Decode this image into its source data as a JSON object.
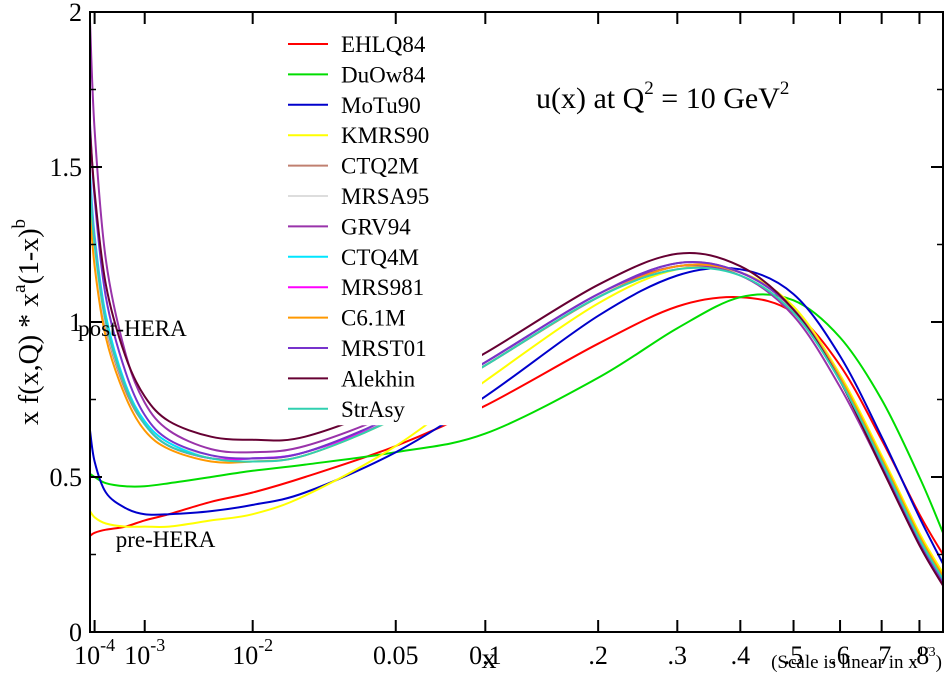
{
  "chart_data": {
    "type": "line",
    "title": "u(x) at Q^2 = 10 GeV^2",
    "title_parts": {
      "main": "u(x) at Q",
      "exp1": "2",
      "mid": " = 10 GeV",
      "exp2": "2"
    },
    "xlabel": "x",
    "ylabel": {
      "prefix": "x f(x,Q)",
      "sup_a": "a",
      "sup_b": "b",
      "star": "* x",
      "mid": "(1-x)"
    },
    "scale_note": "(Scale is linear in x",
    "scale_note_exp": "1/3",
    "scale_note_close": ")",
    "ylim": [
      0,
      2
    ],
    "x_axis_variable": "x^(1/3)",
    "x_range_cuberoot": [
      0.0415,
      0.9535
    ],
    "y_ticks": [
      {
        "value": 0,
        "label": "0"
      },
      {
        "value": 0.5,
        "label": "0.5"
      },
      {
        "value": 1,
        "label": "1"
      },
      {
        "value": 1.5,
        "label": "1.5"
      },
      {
        "value": 2,
        "label": "2"
      }
    ],
    "x_ticks": [
      {
        "value": 0.0001,
        "base": "10",
        "exp": "-4"
      },
      {
        "value": 0.001,
        "base": "10",
        "exp": "-3"
      },
      {
        "value": 0.01,
        "base": "10",
        "exp": "-2"
      },
      {
        "value": 0.05,
        "label": "0.05"
      },
      {
        "value": 0.1,
        "label": "0.1"
      },
      {
        "value": 0.2,
        "label": ".2"
      },
      {
        "value": 0.3,
        "label": ".3"
      },
      {
        "value": 0.4,
        "label": ".4"
      },
      {
        "value": 0.5,
        "label": ".5"
      },
      {
        "value": 0.6,
        "label": ".6"
      },
      {
        "value": 0.7,
        "label": ".7"
      },
      {
        "value": 0.8,
        "label": ".8"
      }
    ],
    "annotations": [
      {
        "text": "post-HERA",
        "x": 0.00025,
        "y": 0.98
      },
      {
        "text": "pre-HERA",
        "x": 0.0011,
        "y": 0.3
      }
    ],
    "legend_position": "top-left",
    "x_knots": [
      7.17e-05,
      0.0001,
      0.0002,
      0.0005,
      0.001,
      0.002,
      0.005,
      0.01,
      0.02,
      0.05,
      0.1,
      0.2,
      0.3,
      0.4,
      0.5,
      0.6,
      0.7,
      0.8,
      0.867
    ],
    "series": [
      {
        "name": "EHLQ84",
        "color": "#ff0000",
        "values": [
          0.31,
          0.32,
          0.33,
          0.34,
          0.36,
          0.38,
          0.42,
          0.45,
          0.5,
          0.6,
          0.73,
          0.93,
          1.05,
          1.08,
          1.03,
          0.86,
          0.62,
          0.38,
          0.25
        ]
      },
      {
        "name": "DuOw84",
        "color": "#00dd00",
        "values": [
          0.51,
          0.5,
          0.48,
          0.47,
          0.47,
          0.48,
          0.5,
          0.52,
          0.54,
          0.58,
          0.64,
          0.82,
          0.98,
          1.08,
          1.07,
          0.95,
          0.75,
          0.5,
          0.32
        ]
      },
      {
        "name": "MoTu90",
        "color": "#0000cc",
        "values": [
          0.65,
          0.55,
          0.45,
          0.4,
          0.38,
          0.38,
          0.39,
          0.41,
          0.45,
          0.58,
          0.76,
          1.02,
          1.15,
          1.17,
          1.09,
          0.89,
          0.63,
          0.37,
          0.22
        ]
      },
      {
        "name": "KMRS90",
        "color": "#ffff00",
        "values": [
          0.39,
          0.37,
          0.35,
          0.34,
          0.34,
          0.34,
          0.36,
          0.38,
          0.44,
          0.6,
          0.81,
          1.06,
          1.17,
          1.16,
          1.05,
          0.83,
          0.57,
          0.32,
          0.19
        ]
      },
      {
        "name": "CTQ2M",
        "color": "#c08070",
        "values": [
          1.38,
          1.21,
          0.98,
          0.78,
          0.67,
          0.6,
          0.56,
          0.56,
          0.58,
          0.7,
          0.87,
          1.09,
          1.19,
          1.16,
          1.04,
          0.82,
          0.55,
          0.3,
          0.17
        ]
      },
      {
        "name": "MRSA95",
        "color": "#dddddd",
        "values": [
          1.4,
          1.22,
          0.99,
          0.79,
          0.68,
          0.61,
          0.57,
          0.56,
          0.58,
          0.69,
          0.86,
          1.08,
          1.18,
          1.16,
          1.04,
          0.82,
          0.55,
          0.3,
          0.17
        ]
      },
      {
        "name": "GRV94",
        "color": "#9933aa",
        "values": [
          1.97,
          1.62,
          1.2,
          0.9,
          0.74,
          0.65,
          0.59,
          0.58,
          0.6,
          0.71,
          0.87,
          1.09,
          1.18,
          1.15,
          1.02,
          0.79,
          0.53,
          0.28,
          0.15
        ]
      },
      {
        "name": "CTQ4M",
        "color": "#00e5ff",
        "values": [
          1.48,
          1.28,
          1.02,
          0.8,
          0.68,
          0.61,
          0.56,
          0.56,
          0.58,
          0.69,
          0.86,
          1.08,
          1.18,
          1.16,
          1.04,
          0.82,
          0.55,
          0.3,
          0.17
        ]
      },
      {
        "name": "MRS981",
        "color": "#ff00ff",
        "values": [
          1.45,
          1.26,
          1.0,
          0.79,
          0.67,
          0.6,
          0.56,
          0.56,
          0.58,
          0.69,
          0.86,
          1.08,
          1.18,
          1.16,
          1.04,
          0.82,
          0.55,
          0.3,
          0.17
        ]
      },
      {
        "name": "C6.1M",
        "color": "#ff9900",
        "values": [
          1.36,
          1.18,
          0.95,
          0.76,
          0.65,
          0.59,
          0.55,
          0.55,
          0.57,
          0.69,
          0.86,
          1.08,
          1.18,
          1.16,
          1.04,
          0.82,
          0.56,
          0.31,
          0.18
        ]
      },
      {
        "name": "MRST01",
        "color": "#7733cc",
        "values": [
          1.64,
          1.4,
          1.08,
          0.84,
          0.7,
          0.62,
          0.57,
          0.56,
          0.58,
          0.7,
          0.87,
          1.09,
          1.19,
          1.16,
          1.04,
          0.81,
          0.54,
          0.29,
          0.16
        ]
      },
      {
        "name": "Alekhin",
        "color": "#660033",
        "values": [
          1.62,
          1.42,
          1.12,
          0.89,
          0.76,
          0.68,
          0.63,
          0.62,
          0.63,
          0.74,
          0.9,
          1.12,
          1.22,
          1.18,
          1.04,
          0.81,
          0.53,
          0.28,
          0.15
        ]
      },
      {
        "name": "StrAsy",
        "color": "#30d0b0",
        "values": [
          1.44,
          1.25,
          1.0,
          0.79,
          0.67,
          0.6,
          0.56,
          0.55,
          0.57,
          0.69,
          0.86,
          1.08,
          1.17,
          1.15,
          1.03,
          0.81,
          0.55,
          0.3,
          0.17
        ]
      }
    ]
  }
}
